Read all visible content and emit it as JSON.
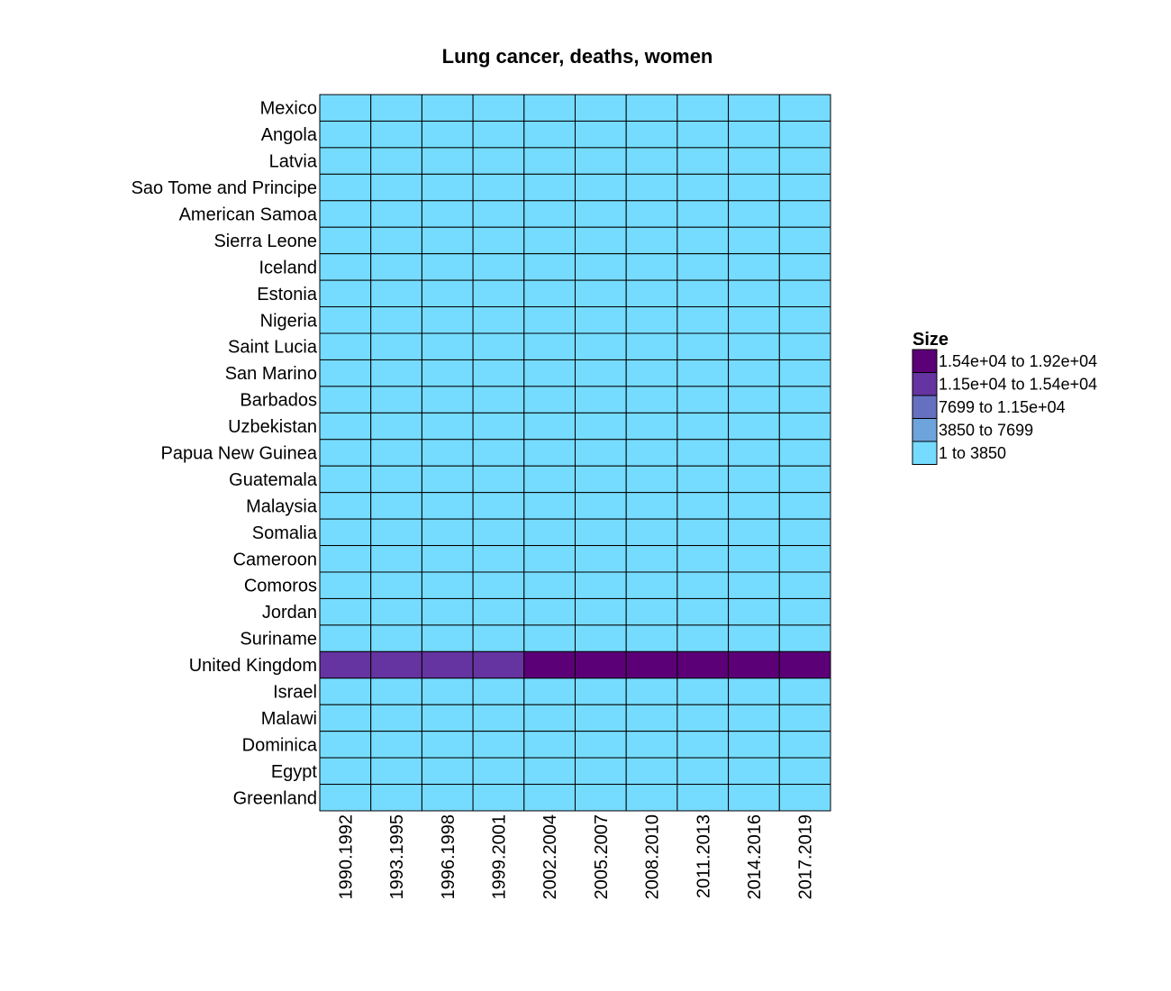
{
  "chart_data": {
    "type": "heatmap",
    "title": "Lung cancer, deaths, women",
    "xlabel": "",
    "ylabel": "",
    "x_categories": [
      "1990.1992",
      "1993.1995",
      "1996.1998",
      "1999.2001",
      "2002.2004",
      "2005.2007",
      "2008.2010",
      "2011.2013",
      "2014.2016",
      "2017.2019"
    ],
    "y_categories": [
      "Mexico",
      "Angola",
      "Latvia",
      "Sao Tome and Principe",
      "American Samoa",
      "Sierra Leone",
      "Iceland",
      "Estonia",
      "Nigeria",
      "Saint Lucia",
      "San Marino",
      "Barbados",
      "Uzbekistan",
      "Papua New Guinea",
      "Guatemala",
      "Malaysia",
      "Somalia",
      "Cameroon",
      "Comoros",
      "Jordan",
      "Suriname",
      "United Kingdom",
      "Israel",
      "Malawi",
      "Dominica",
      "Egypt",
      "Greenland"
    ],
    "legend": {
      "title": "Size",
      "placement": "right",
      "bins": [
        {
          "label": "1.54e+04 to 1.92e+04",
          "color": "#5c0078"
        },
        {
          "label": "1.15e+04 to 1.54e+04",
          "color": "#6634a0"
        },
        {
          "label": "7699 to 1.15e+04",
          "color": "#6670c0"
        },
        {
          "label": "3850 to 7699",
          "color": "#6ea4dc"
        },
        {
          "label": "1 to 3850",
          "color": "#76dcff"
        }
      ]
    },
    "bin_index_grid": [
      [
        4,
        4,
        4,
        4,
        4,
        4,
        4,
        4,
        4,
        4
      ],
      [
        4,
        4,
        4,
        4,
        4,
        4,
        4,
        4,
        4,
        4
      ],
      [
        4,
        4,
        4,
        4,
        4,
        4,
        4,
        4,
        4,
        4
      ],
      [
        4,
        4,
        4,
        4,
        4,
        4,
        4,
        4,
        4,
        4
      ],
      [
        4,
        4,
        4,
        4,
        4,
        4,
        4,
        4,
        4,
        4
      ],
      [
        4,
        4,
        4,
        4,
        4,
        4,
        4,
        4,
        4,
        4
      ],
      [
        4,
        4,
        4,
        4,
        4,
        4,
        4,
        4,
        4,
        4
      ],
      [
        4,
        4,
        4,
        4,
        4,
        4,
        4,
        4,
        4,
        4
      ],
      [
        4,
        4,
        4,
        4,
        4,
        4,
        4,
        4,
        4,
        4
      ],
      [
        4,
        4,
        4,
        4,
        4,
        4,
        4,
        4,
        4,
        4
      ],
      [
        4,
        4,
        4,
        4,
        4,
        4,
        4,
        4,
        4,
        4
      ],
      [
        4,
        4,
        4,
        4,
        4,
        4,
        4,
        4,
        4,
        4
      ],
      [
        4,
        4,
        4,
        4,
        4,
        4,
        4,
        4,
        4,
        4
      ],
      [
        4,
        4,
        4,
        4,
        4,
        4,
        4,
        4,
        4,
        4
      ],
      [
        4,
        4,
        4,
        4,
        4,
        4,
        4,
        4,
        4,
        4
      ],
      [
        4,
        4,
        4,
        4,
        4,
        4,
        4,
        4,
        4,
        4
      ],
      [
        4,
        4,
        4,
        4,
        4,
        4,
        4,
        4,
        4,
        4
      ],
      [
        4,
        4,
        4,
        4,
        4,
        4,
        4,
        4,
        4,
        4
      ],
      [
        4,
        4,
        4,
        4,
        4,
        4,
        4,
        4,
        4,
        4
      ],
      [
        4,
        4,
        4,
        4,
        4,
        4,
        4,
        4,
        4,
        4
      ],
      [
        4,
        4,
        4,
        4,
        4,
        4,
        4,
        4,
        4,
        4
      ],
      [
        1,
        1,
        1,
        1,
        0,
        0,
        0,
        0,
        0,
        0
      ],
      [
        4,
        4,
        4,
        4,
        4,
        4,
        4,
        4,
        4,
        4
      ],
      [
        4,
        4,
        4,
        4,
        4,
        4,
        4,
        4,
        4,
        4
      ],
      [
        4,
        4,
        4,
        4,
        4,
        4,
        4,
        4,
        4,
        4
      ],
      [
        4,
        4,
        4,
        4,
        4,
        4,
        4,
        4,
        4,
        4
      ],
      [
        4,
        4,
        4,
        4,
        4,
        4,
        4,
        4,
        4,
        4
      ]
    ]
  }
}
